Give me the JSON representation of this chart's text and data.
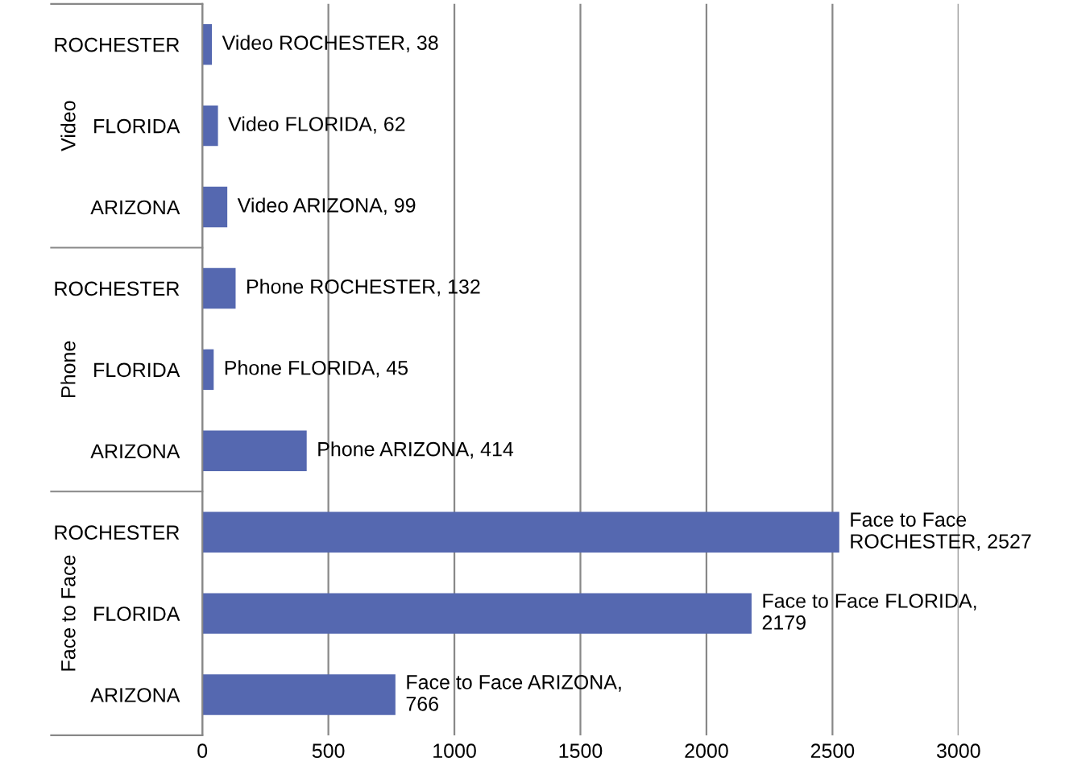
{
  "chart_data": {
    "type": "bar",
    "orientation": "horizontal",
    "categories": [
      "ROCHESTER",
      "FLORIDA",
      "ARIZONA",
      "ROCHESTER",
      "FLORIDA",
      "ARIZONA",
      "ROCHESTER",
      "FLORIDA",
      "ARIZONA"
    ],
    "values": [
      38,
      62,
      99,
      132,
      45,
      414,
      2527,
      2179,
      766
    ],
    "color": "#5568b0",
    "value_labels": [
      "Video ROCHESTER, 38",
      "Video FLORIDA, 62",
      "Video ARIZONA, 99",
      "Phone ROCHESTER, 132",
      "Phone FLORIDA, 45",
      "Phone ARIZONA, 414",
      "Face to Face\nROCHESTER, 2527",
      "Face to Face FLORIDA,\n2179",
      "Face to Face ARIZONA,\n766"
    ],
    "annotations": [
      "Video",
      "Phone",
      "Face to Face"
    ],
    "xlim": [
      0,
      3000
    ],
    "xticks": [
      0,
      500,
      1000,
      1500,
      2000,
      2500,
      3000
    ],
    "grid": "x",
    "legend": false
  }
}
